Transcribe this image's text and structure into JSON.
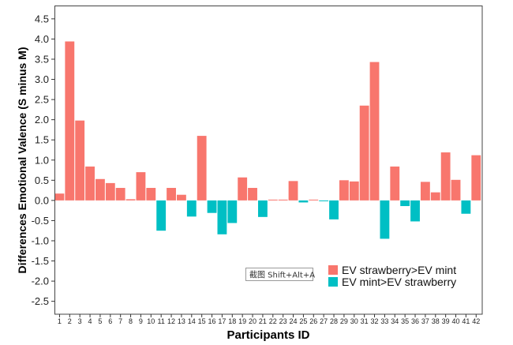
{
  "chart_data": {
    "type": "bar",
    "title": "",
    "xlabel": "Participants ID",
    "ylabel": "Differences Emotional Valence (S minus M)",
    "categories": [
      "1",
      "2",
      "3",
      "4",
      "5",
      "6",
      "7",
      "8",
      "9",
      "10",
      "11",
      "12",
      "13",
      "14",
      "15",
      "16",
      "17",
      "18",
      "19",
      "20",
      "21",
      "22",
      "23",
      "24",
      "25",
      "26",
      "27",
      "28",
      "29",
      "30",
      "31",
      "32",
      "33",
      "34",
      "35",
      "36",
      "37",
      "38",
      "39",
      "40",
      "41",
      "42"
    ],
    "values": [
      0.17,
      3.94,
      1.98,
      0.84,
      0.53,
      0.43,
      0.31,
      0.03,
      0.7,
      0.31,
      -0.75,
      0.31,
      0.14,
      -0.4,
      1.6,
      -0.31,
      -0.84,
      -0.56,
      0.57,
      0.31,
      -0.41,
      0.02,
      0.02,
      0.48,
      -0.05,
      0.02,
      -0.02,
      -0.47,
      0.5,
      0.47,
      2.35,
      3.43,
      -0.95,
      0.84,
      -0.14,
      -0.52,
      0.46,
      0.2,
      1.19,
      0.51,
      -0.33,
      1.12
    ],
    "xlim": [
      0.5,
      42.6
    ],
    "ylim": [
      -2.82,
      4.83
    ],
    "y_tick_labels": [
      "4.5",
      "4.0",
      "3.5",
      "3.0",
      "2.5",
      "2.0",
      "1.5",
      "1.0",
      "0.5",
      "0.0",
      "-0.5",
      "-1.0",
      "-1.5",
      "-2.0",
      "-2.5"
    ],
    "grid": false,
    "series": [
      {
        "name": "EV strawberry>EV mint",
        "color": "#F8766D"
      },
      {
        "name": "EV mint>EV strawberry",
        "color": "#00BFC4"
      }
    ],
    "legend": {
      "position": "bottom-right"
    }
  },
  "screen_overlay": {
    "tooltip_text": "截图 Shift+Alt+A"
  }
}
